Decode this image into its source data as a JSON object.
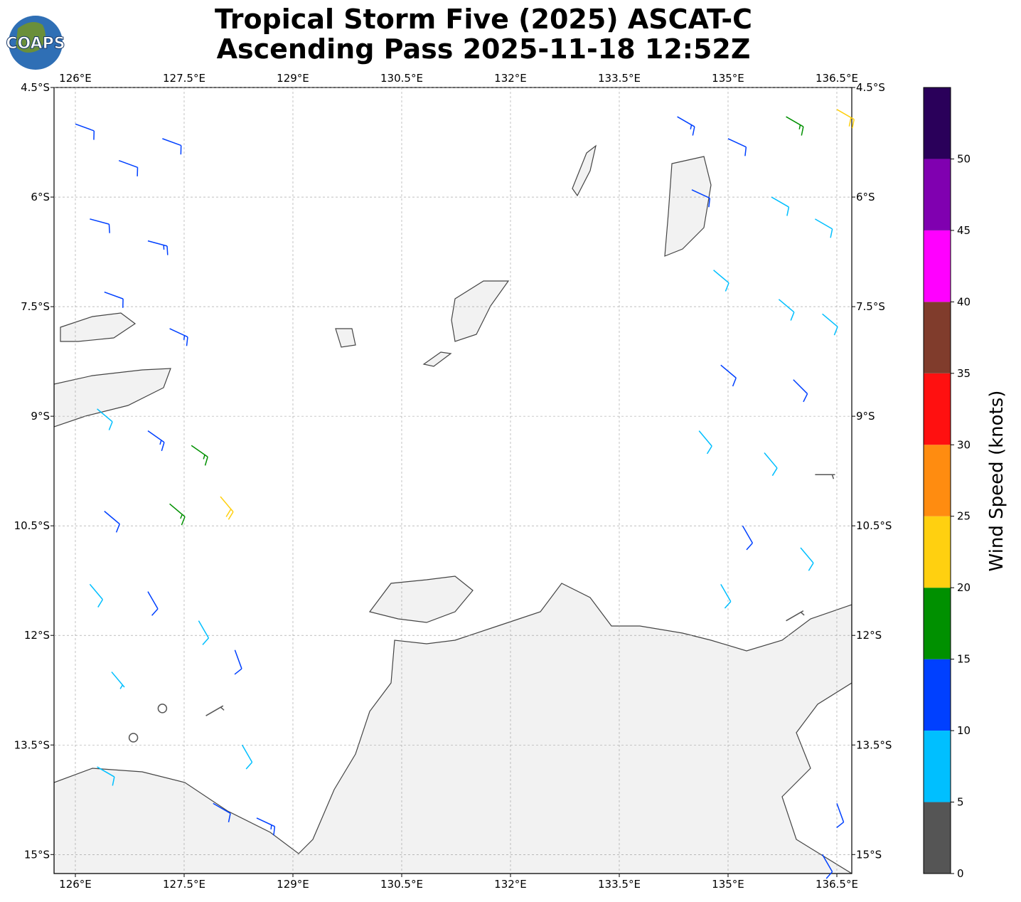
{
  "logo": "COAPS",
  "title": "Tropical Storm Five (2025) ASCAT-C",
  "subtitle": "Ascending Pass 2025-11-18 12:52Z",
  "map": {
    "xlim": [
      125.706,
      136.706
    ],
    "ylim": [
      -15.26,
      -4.5
    ],
    "xticks": [
      {
        "value": 126,
        "label": "126°E"
      },
      {
        "value": 127.5,
        "label": "127.5°E"
      },
      {
        "value": 129,
        "label": "129°E"
      },
      {
        "value": 130.5,
        "label": "130.5°E"
      },
      {
        "value": 132,
        "label": "132°E"
      },
      {
        "value": 133.5,
        "label": "133.5°E"
      },
      {
        "value": 135,
        "label": "135°E"
      },
      {
        "value": 136.5,
        "label": "136.5°E"
      }
    ],
    "yticks": [
      {
        "value": -4.5,
        "label": "4.5°S"
      },
      {
        "value": -6,
        "label": "6°S"
      },
      {
        "value": -7.5,
        "label": "7.5°S"
      },
      {
        "value": -9,
        "label": "9°S"
      },
      {
        "value": -10.5,
        "label": "10.5°S"
      },
      {
        "value": -12,
        "label": "12°S"
      },
      {
        "value": -13.5,
        "label": "13.5°S"
      },
      {
        "value": -15,
        "label": "15°S"
      }
    ],
    "grid": true,
    "barbs": {
      "lon": [
        126.0,
        126.6,
        127.2,
        126.2,
        127.0,
        126.4,
        127.3,
        126.3,
        127.0,
        127.6,
        127.3,
        126.4,
        126.2,
        127.0,
        127.7,
        128.2,
        126.5,
        127.2,
        126.8,
        127.8,
        128.3,
        126.3,
        127.9,
        128.5,
        128.0,
        134.3,
        135.0,
        135.8,
        136.5,
        134.5,
        135.6,
        136.2,
        134.8,
        135.7,
        136.3,
        134.9,
        135.9,
        134.6,
        135.5,
        136.2,
        135.2,
        136.0,
        134.9,
        135.8,
        136.5,
        136.3
      ],
      "lat": [
        -5.0,
        -5.5,
        -5.2,
        -6.3,
        -6.6,
        -7.3,
        -7.8,
        -8.9,
        -9.2,
        -9.4,
        -10.2,
        -10.3,
        -11.3,
        -11.4,
        -11.8,
        -12.2,
        -12.5,
        -13.0,
        -13.4,
        -13.1,
        -13.5,
        -13.8,
        -14.3,
        -14.5,
        -10.1,
        -4.9,
        -5.2,
        -4.9,
        -4.8,
        -5.9,
        -6.0,
        -6.3,
        -7.0,
        -7.4,
        -7.6,
        -8.3,
        -8.5,
        -9.2,
        -9.5,
        -9.8,
        -10.5,
        -10.8,
        -11.3,
        -11.8,
        -14.3,
        -15.0
      ],
      "speed": [
        12,
        12,
        11,
        12,
        13,
        12,
        13,
        8,
        13,
        17,
        17,
        12,
        8,
        12,
        8,
        12,
        7,
        2,
        2,
        3,
        8,
        8,
        12,
        13,
        22,
        13,
        12,
        17,
        22,
        12,
        8,
        8,
        8,
        9,
        8,
        12,
        12,
        8,
        9,
        4,
        12,
        9,
        8,
        4,
        12,
        12
      ],
      "direction": [
        110,
        110,
        110,
        105,
        105,
        110,
        115,
        130,
        125,
        125,
        130,
        130,
        140,
        150,
        150,
        160,
        140,
        0,
        0,
        60,
        150,
        120,
        120,
        115,
        140,
        120,
        115,
        120,
        120,
        115,
        120,
        120,
        130,
        130,
        130,
        130,
        135,
        140,
        140,
        90,
        150,
        140,
        150,
        60,
        160,
        150
      ]
    }
  },
  "colorbar": {
    "label": "Wind Speed (knots)",
    "lim": [
      0,
      55
    ],
    "ticks": [
      0,
      5,
      10,
      15,
      20,
      25,
      30,
      35,
      40,
      45,
      50
    ],
    "colors": [
      "#555555",
      "#00bfff",
      "#0040ff",
      "#009000",
      "#ffd010",
      "#ff8c10",
      "#ff1010",
      "#803c2c",
      "#ff00ff",
      "#8000b0",
      "#2a005a"
    ]
  }
}
